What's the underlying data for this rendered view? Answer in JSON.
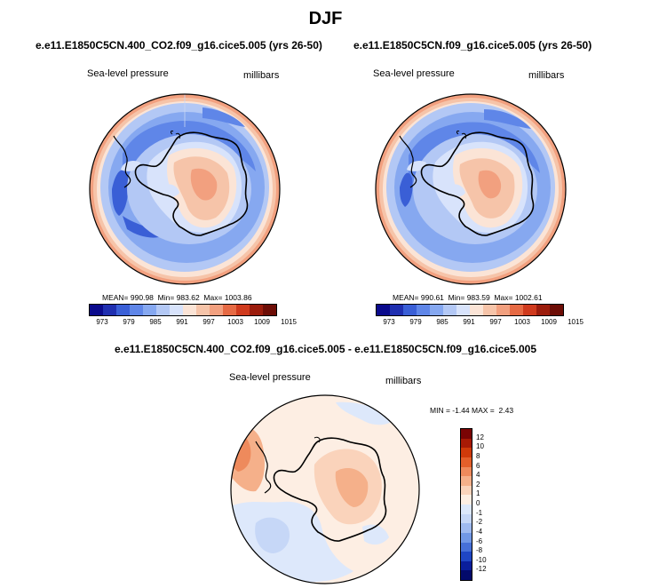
{
  "season": "DJF",
  "chart_data": [
    {
      "type": "heatmap",
      "title": "e.e11.E1850C5CN.400_CO2.f09_g16.cice5.005 (yrs 26-50)",
      "variable": "Sea-level pressure",
      "units": "millibars",
      "projection": "south-polar-stereographic",
      "mean_label": "MEAN=",
      "mean": "990.98",
      "min_label": "Min=",
      "min": "983.62",
      "max_label": "Max=",
      "max": "1003.86",
      "colorbar_ticks": [
        "973",
        "979",
        "985",
        "991",
        "997",
        "1003",
        "1009",
        "1015"
      ]
    },
    {
      "type": "heatmap",
      "title": "e.e11.E1850C5CN.f09_g16.cice5.005 (yrs 26-50)",
      "variable": "Sea-level pressure",
      "units": "millibars",
      "projection": "south-polar-stereographic",
      "mean_label": "MEAN=",
      "mean": "990.61",
      "min_label": "Min=",
      "min": "983.59",
      "max_label": "Max=",
      "max": "1002.61",
      "colorbar_ticks": [
        "973",
        "979",
        "985",
        "991",
        "997",
        "1003",
        "1009",
        "1015"
      ]
    },
    {
      "type": "heatmap",
      "title": "e.e11.E1850C5CN.400_CO2.f09_g16.cice5.005 - e.e11.E1850C5CN.f09_g16.cice5.005",
      "variable": "Sea-level pressure",
      "units": "millibars",
      "projection": "south-polar-stereographic",
      "min_label": "MIN =",
      "min": "-1.44",
      "max_label": "MAX =",
      "max": "2.43",
      "colorbar_ticks": [
        "12",
        "10",
        "8",
        "6",
        "4",
        "2",
        "1",
        "0",
        "-1",
        "-2",
        "-4",
        "-6",
        "-8",
        "-10",
        "-12"
      ]
    }
  ],
  "colors": {
    "abs_scale": [
      "#0a0a8c",
      "#1f2fb0",
      "#3a5fd6",
      "#5f86e8",
      "#86a8f0",
      "#b3c8f5",
      "#d8e3fb",
      "#fbe4d6",
      "#f6c4a9",
      "#f2a07f",
      "#e66a44",
      "#cf3a1d",
      "#9b1c0c",
      "#6d0d06"
    ],
    "diff_scale": [
      "#7a0404",
      "#a81a05",
      "#cf3a0a",
      "#e35f2a",
      "#ee8a5c",
      "#f5b08a",
      "#fad3bb",
      "#fdeee3",
      "#dde8fb",
      "#c6d7f7",
      "#9fbaf0",
      "#7198e6",
      "#4670d8",
      "#1f46c4",
      "#0a1e9c",
      "#030a6b"
    ]
  }
}
